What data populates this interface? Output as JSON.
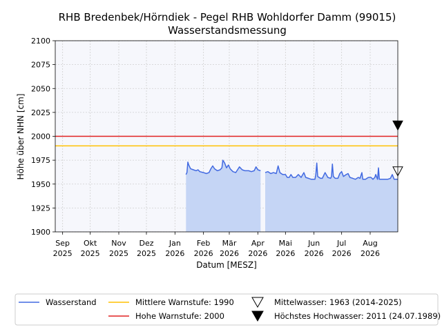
{
  "chart_data": {
    "type": "line",
    "title": "RHB Bredenbek/Hörndiek - Pegel RHB Wohldorfer Damm (99015)",
    "subtitle": "Wasserstandsmessung",
    "xlabel": "Datum [MESZ]",
    "ylabel": "Höhe über NHN [cm]",
    "ylim": [
      1900,
      2100
    ],
    "xlim": [
      "2025-08-24",
      "2026-08-31"
    ],
    "grid": true,
    "legend_position": "bottom",
    "y_ticks": [
      "1900",
      "1925",
      "1950",
      "1975",
      "2000",
      "2025",
      "2050",
      "2075",
      "2100"
    ],
    "x_ticks": [
      {
        "date": "2025-09-01",
        "month": "Sep",
        "year": "2025"
      },
      {
        "date": "2025-10-01",
        "month": "Okt",
        "year": "2025"
      },
      {
        "date": "2025-11-01",
        "month": "Nov",
        "year": "2025"
      },
      {
        "date": "2025-12-01",
        "month": "Dez",
        "year": "2025"
      },
      {
        "date": "2026-01-01",
        "month": "Jan",
        "year": "2026"
      },
      {
        "date": "2026-02-01",
        "month": "Feb",
        "year": "2026"
      },
      {
        "date": "2026-03-01",
        "month": "Mär",
        "year": "2026"
      },
      {
        "date": "2026-04-01",
        "month": "Apr",
        "year": "2026"
      },
      {
        "date": "2026-05-01",
        "month": "Mai",
        "year": "2026"
      },
      {
        "date": "2026-06-01",
        "month": "Jun",
        "year": "2026"
      },
      {
        "date": "2026-07-01",
        "month": "Jul",
        "year": "2026"
      },
      {
        "date": "2026-08-01",
        "month": "Aug",
        "year": "2026"
      }
    ],
    "series": [
      {
        "name": "Wasserstand",
        "color": "#4169e1",
        "fill": "#c5d5f5",
        "segments": [
          [
            [
              "2026-01-13",
              1960
            ],
            [
              "2026-01-14",
              1962
            ],
            [
              "2026-01-15",
              1973
            ],
            [
              "2026-01-16",
              1970
            ],
            [
              "2026-01-18",
              1966
            ],
            [
              "2026-01-21",
              1965
            ],
            [
              "2026-01-24",
              1964
            ],
            [
              "2026-01-26",
              1965
            ],
            [
              "2026-01-28",
              1963
            ],
            [
              "2026-02-01",
              1962
            ],
            [
              "2026-02-04",
              1961
            ],
            [
              "2026-02-07",
              1962
            ],
            [
              "2026-02-09",
              1966
            ],
            [
              "2026-02-11",
              1969
            ],
            [
              "2026-02-13",
              1966
            ],
            [
              "2026-02-16",
              1964
            ],
            [
              "2026-02-19",
              1965
            ],
            [
              "2026-02-21",
              1967
            ],
            [
              "2026-02-22",
              1975
            ],
            [
              "2026-02-24",
              1972
            ],
            [
              "2026-02-26",
              1967
            ],
            [
              "2026-02-28",
              1970
            ],
            [
              "2026-03-02",
              1966
            ],
            [
              "2026-03-05",
              1963
            ],
            [
              "2026-03-08",
              1962
            ],
            [
              "2026-03-10",
              1965
            ],
            [
              "2026-03-12",
              1968
            ],
            [
              "2026-03-15",
              1965
            ],
            [
              "2026-03-18",
              1964
            ],
            [
              "2026-03-22",
              1964
            ],
            [
              "2026-03-25",
              1963
            ],
            [
              "2026-03-28",
              1964
            ],
            [
              "2026-03-30",
              1968
            ],
            [
              "2026-04-01",
              1965
            ],
            [
              "2026-04-04",
              1964
            ]
          ],
          [
            [
              "2026-04-09",
              1962
            ],
            [
              "2026-04-12",
              1963
            ],
            [
              "2026-04-15",
              1961
            ],
            [
              "2026-04-18",
              1962
            ],
            [
              "2026-04-21",
              1961
            ],
            [
              "2026-04-23",
              1969
            ],
            [
              "2026-04-25",
              1962
            ],
            [
              "2026-04-28",
              1960
            ],
            [
              "2026-05-01",
              1960
            ],
            [
              "2026-05-03",
              1957
            ],
            [
              "2026-05-05",
              1957
            ],
            [
              "2026-05-07",
              1960
            ],
            [
              "2026-05-09",
              1957
            ],
            [
              "2026-05-12",
              1957
            ],
            [
              "2026-05-15",
              1960
            ],
            [
              "2026-05-18",
              1957
            ],
            [
              "2026-05-21",
              1962
            ],
            [
              "2026-05-23",
              1957
            ],
            [
              "2026-05-26",
              1956
            ],
            [
              "2026-05-29",
              1955
            ],
            [
              "2026-06-02",
              1955
            ],
            [
              "2026-06-03",
              1960
            ],
            [
              "2026-06-04",
              1972
            ],
            [
              "2026-06-05",
              1958
            ],
            [
              "2026-06-08",
              1956
            ],
            [
              "2026-06-10",
              1956
            ],
            [
              "2026-06-13",
              1962
            ],
            [
              "2026-06-16",
              1957
            ],
            [
              "2026-06-19",
              1956
            ],
            [
              "2026-06-20",
              1958
            ],
            [
              "2026-06-21",
              1971
            ],
            [
              "2026-06-22",
              1958
            ],
            [
              "2026-06-24",
              1956
            ],
            [
              "2026-06-27",
              1956
            ],
            [
              "2026-06-29",
              1961
            ],
            [
              "2026-07-01",
              1963
            ],
            [
              "2026-07-03",
              1958
            ],
            [
              "2026-07-06",
              1960
            ],
            [
              "2026-07-08",
              1961
            ],
            [
              "2026-07-10",
              1957
            ],
            [
              "2026-07-13",
              1956
            ],
            [
              "2026-07-16",
              1955
            ],
            [
              "2026-07-19",
              1957
            ],
            [
              "2026-07-21",
              1956
            ],
            [
              "2026-07-23",
              1962
            ],
            [
              "2026-07-24",
              1955
            ],
            [
              "2026-07-27",
              1955
            ],
            [
              "2026-07-30",
              1957
            ],
            [
              "2026-08-02",
              1957
            ],
            [
              "2026-08-04",
              1955
            ],
            [
              "2026-08-06",
              1957
            ],
            [
              "2026-08-07",
              1960
            ],
            [
              "2026-08-09",
              1955
            ],
            [
              "2026-08-10",
              1967
            ],
            [
              "2026-08-11",
              1955
            ],
            [
              "2026-08-14",
              1955
            ],
            [
              "2026-08-17",
              1955
            ],
            [
              "2026-08-20",
              1955
            ],
            [
              "2026-08-23",
              1956
            ],
            [
              "2026-08-25",
              1960
            ],
            [
              "2026-08-27",
              1955
            ],
            [
              "2026-08-31",
              1955
            ]
          ]
        ]
      }
    ],
    "reference_lines": [
      {
        "label": "Mittlere Warnstufe: 1990",
        "value": 1990,
        "color": "#ffc000"
      },
      {
        "label": "Hohe Warnstufe: 2000",
        "value": 2000,
        "color": "#e02020"
      }
    ],
    "markers": [
      {
        "label": "Mittelwasser: 1963 (2014-2025)",
        "value": 1963,
        "style": "open-triangle-down"
      },
      {
        "label": "Höchstes Hochwasser: 2011 (24.07.1989)",
        "value": 2011,
        "style": "filled-triangle-down"
      }
    ]
  }
}
